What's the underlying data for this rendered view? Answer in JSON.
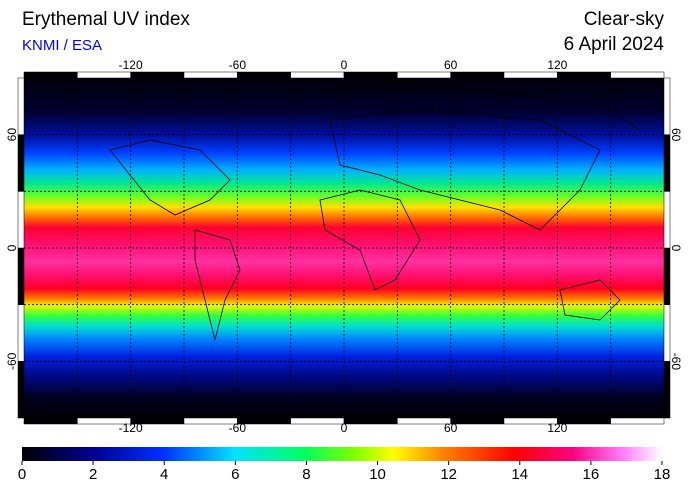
{
  "header": {
    "title": "Erythemal UV index",
    "source": "KNMI / ESA",
    "sky": "Clear-sky",
    "date": "6 April 2024"
  },
  "map": {
    "lonlim": [
      -180,
      180
    ],
    "latlim": [
      -90,
      90
    ],
    "lon_ticks": [
      -120,
      -60,
      0,
      60,
      120
    ],
    "lat_ticks": [
      -60,
      0,
      60
    ],
    "lon_grid": [
      -150,
      -120,
      -90,
      -60,
      -30,
      0,
      30,
      60,
      90,
      120,
      150
    ],
    "lat_grid": [
      -60,
      -30,
      0,
      30,
      60
    ]
  },
  "colorbar": {
    "lim": [
      0,
      18
    ],
    "ticks": [
      0,
      2,
      4,
      6,
      8,
      10,
      12,
      14,
      16,
      18
    ]
  }
}
